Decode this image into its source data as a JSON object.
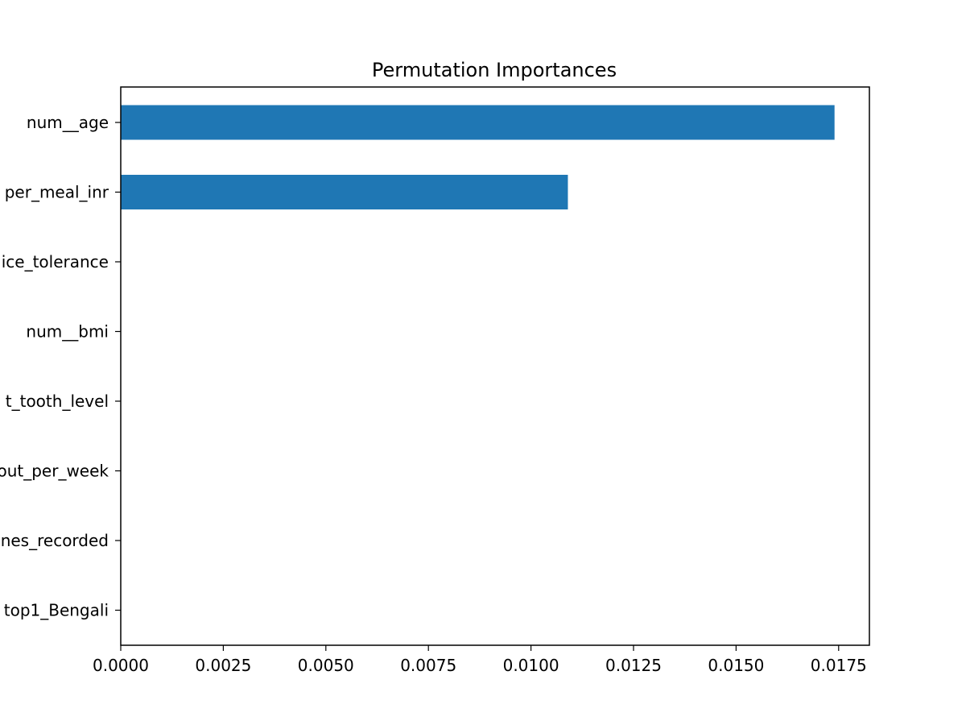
{
  "chart_data": {
    "type": "bar",
    "orientation": "horizontal",
    "title": "Permutation Importances",
    "xlabel": "",
    "ylabel": "",
    "xlim": [
      0,
      0.01825
    ],
    "xticks": [
      "0.0000",
      "0.0025",
      "0.0050",
      "0.0075",
      "0.0100",
      "0.0125",
      "0.0150",
      "0.0175"
    ],
    "xtick_values": [
      0,
      0.0025,
      0.005,
      0.0075,
      0.01,
      0.0125,
      0.015,
      0.0175
    ],
    "categories": [
      "num__age",
      "per_meal_inr",
      "ice_tolerance",
      "num__bmi",
      "t_tooth_level",
      "out_per_week",
      "nes_recorded",
      "top1_Bengali"
    ],
    "values": [
      0.0174,
      0.0109,
      0,
      0,
      0,
      0,
      0,
      0
    ],
    "bar_color": "#1f77b4",
    "grid": false,
    "legend": "none"
  }
}
